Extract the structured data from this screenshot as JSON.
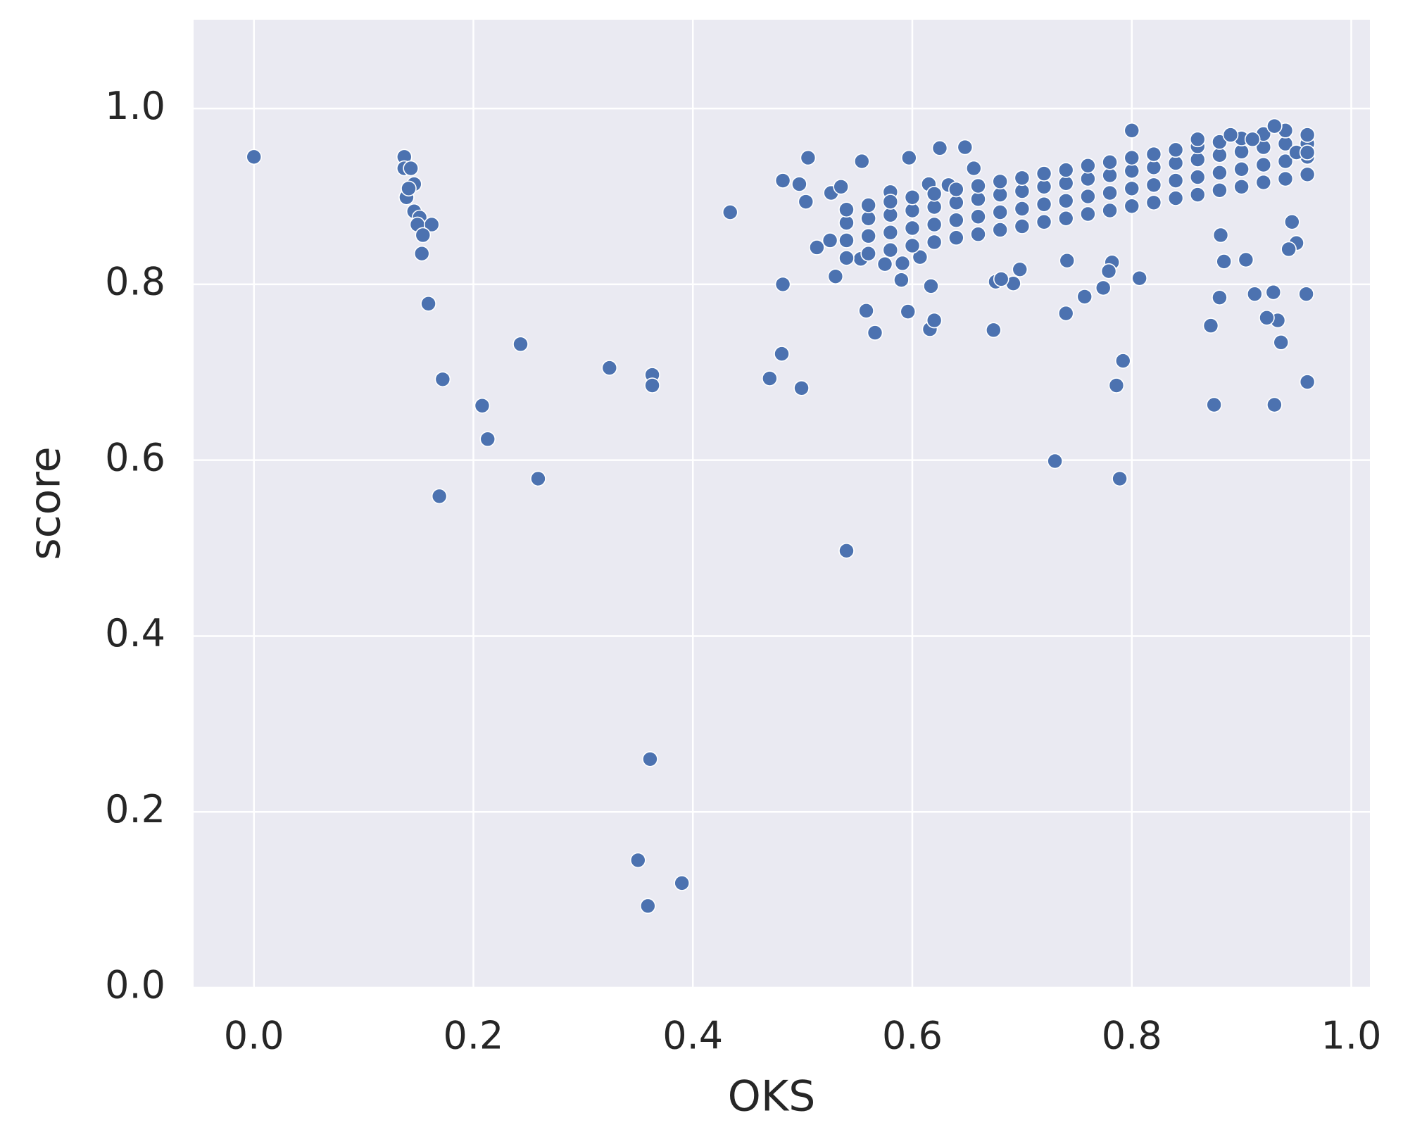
{
  "chart_data": {
    "type": "scatter",
    "x_label": "OKS",
    "y_label": "score",
    "color": "#4c72b0",
    "grid": true,
    "xlim": [
      -0.055,
      1.017
    ],
    "ylim": [
      0,
      1.101
    ],
    "xticks": [
      {
        "value": 0,
        "label": "0.0"
      },
      0.2,
      0.4,
      0.6,
      0.8,
      {
        "value": 1,
        "label": "1.0"
      }
    ],
    "yticks": [
      {
        "value": 0,
        "label": "0.0"
      },
      0.2,
      0.4,
      0.6,
      0.8,
      {
        "value": 1,
        "label": "1.0"
      }
    ],
    "x": [
      0.0,
      0.137,
      0.137,
      0.143,
      0.146,
      0.139,
      0.141,
      0.146,
      0.151,
      0.149,
      0.162,
      0.154,
      0.153,
      0.159,
      0.172,
      0.169,
      0.208,
      0.213,
      0.243,
      0.259,
      0.324,
      0.363,
      0.363,
      0.361,
      0.35,
      0.359,
      0.39,
      0.434,
      0.47,
      0.481,
      0.482,
      0.499,
      0.54,
      0.73,
      0.789,
      0.792,
      0.786,
      0.875,
      0.93,
      0.96,
      0.872,
      0.88,
      0.936,
      0.933,
      0.923,
      0.959,
      0.912,
      0.929,
      0.904,
      0.884,
      0.881,
      0.95,
      0.943,
      0.946,
      0.807,
      0.757,
      0.741,
      0.74,
      0.774,
      0.782,
      0.779,
      0.674,
      0.616,
      0.62,
      0.596,
      0.558,
      0.566,
      0.617,
      0.59,
      0.591,
      0.53,
      0.553,
      0.575,
      0.607,
      0.676,
      0.692,
      0.698,
      0.681,
      0.513,
      0.525,
      0.497,
      0.503,
      0.482,
      0.505,
      0.526,
      0.535,
      0.554,
      0.597,
      0.625,
      0.648,
      0.58,
      0.615,
      0.656,
      0.633,
      0.54,
      0.54,
      0.54,
      0.54,
      0.56,
      0.56,
      0.56,
      0.56,
      0.58,
      0.58,
      0.58,
      0.58,
      0.6,
      0.6,
      0.6,
      0.6,
      0.62,
      0.62,
      0.62,
      0.62,
      0.64,
      0.64,
      0.64,
      0.64,
      0.66,
      0.66,
      0.66,
      0.66,
      0.68,
      0.68,
      0.68,
      0.68,
      0.7,
      0.7,
      0.7,
      0.7,
      0.72,
      0.72,
      0.72,
      0.72,
      0.74,
      0.74,
      0.74,
      0.74,
      0.76,
      0.76,
      0.76,
      0.76,
      0.78,
      0.78,
      0.78,
      0.78,
      0.8,
      0.8,
      0.8,
      0.8,
      0.82,
      0.82,
      0.82,
      0.82,
      0.84,
      0.84,
      0.84,
      0.84,
      0.86,
      0.86,
      0.86,
      0.86,
      0.88,
      0.88,
      0.88,
      0.88,
      0.9,
      0.9,
      0.9,
      0.9,
      0.92,
      0.92,
      0.92,
      0.92,
      0.94,
      0.94,
      0.94,
      0.94,
      0.96,
      0.96,
      0.96,
      0.96,
      0.8,
      0.93,
      0.86,
      0.95,
      0.96,
      0.91,
      0.89
    ],
    "values": [
      0.945,
      0.945,
      0.932,
      0.932,
      0.914,
      0.899,
      0.909,
      0.883,
      0.876,
      0.868,
      0.868,
      0.856,
      0.835,
      0.778,
      0.692,
      0.559,
      0.662,
      0.624,
      0.732,
      0.579,
      0.705,
      0.697,
      0.685,
      0.26,
      0.145,
      0.093,
      0.119,
      0.882,
      0.693,
      0.721,
      0.8,
      0.682,
      0.497,
      0.599,
      0.579,
      0.713,
      0.685,
      0.663,
      0.663,
      0.689,
      0.753,
      0.785,
      0.734,
      0.759,
      0.762,
      0.789,
      0.789,
      0.791,
      0.828,
      0.826,
      0.856,
      0.847,
      0.84,
      0.871,
      0.807,
      0.786,
      0.827,
      0.767,
      0.796,
      0.825,
      0.815,
      0.748,
      0.749,
      0.759,
      0.769,
      0.77,
      0.745,
      0.798,
      0.805,
      0.824,
      0.809,
      0.829,
      0.823,
      0.831,
      0.803,
      0.801,
      0.817,
      0.806,
      0.842,
      0.85,
      0.914,
      0.894,
      0.918,
      0.944,
      0.904,
      0.911,
      0.94,
      0.944,
      0.955,
      0.956,
      0.905,
      0.914,
      0.932,
      0.913,
      0.83,
      0.85,
      0.87,
      0.885,
      0.835,
      0.855,
      0.875,
      0.89,
      0.839,
      0.859,
      0.879,
      0.894,
      0.844,
      0.864,
      0.884,
      0.899,
      0.848,
      0.868,
      0.888,
      0.903,
      0.853,
      0.873,
      0.893,
      0.908,
      0.857,
      0.877,
      0.897,
      0.912,
      0.862,
      0.882,
      0.902,
      0.917,
      0.866,
      0.886,
      0.906,
      0.921,
      0.871,
      0.891,
      0.911,
      0.926,
      0.875,
      0.895,
      0.915,
      0.93,
      0.88,
      0.9,
      0.92,
      0.935,
      0.884,
      0.904,
      0.924,
      0.939,
      0.889,
      0.909,
      0.929,
      0.944,
      0.893,
      0.913,
      0.933,
      0.948,
      0.898,
      0.918,
      0.938,
      0.953,
      0.902,
      0.922,
      0.942,
      0.957,
      0.907,
      0.927,
      0.947,
      0.962,
      0.911,
      0.931,
      0.951,
      0.966,
      0.916,
      0.936,
      0.956,
      0.971,
      0.92,
      0.94,
      0.96,
      0.975,
      0.925,
      0.945,
      0.96,
      0.97,
      0.975,
      0.98,
      0.965,
      0.95,
      0.95,
      0.965,
      0.97
    ]
  }
}
